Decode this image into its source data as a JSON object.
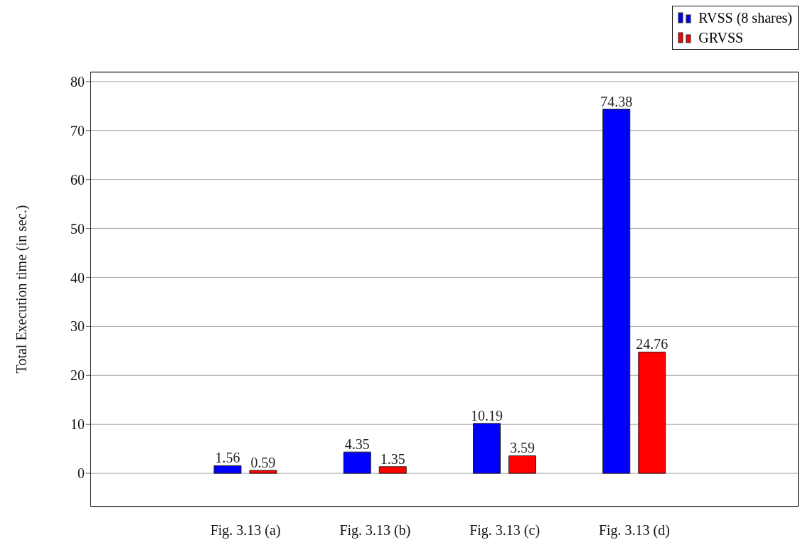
{
  "chart_data": {
    "type": "bar",
    "ylabel": "Total Execution time (in sec.)",
    "categories": [
      "Fig. 3.13 (a)",
      "Fig. 3.13 (b)",
      "Fig. 3.13 (c)",
      "Fig. 3.13 (d)"
    ],
    "series": [
      {
        "name": "RVSS (8 shares)",
        "color": "#0000ff",
        "values": [
          1.56,
          4.35,
          10.19,
          74.38
        ]
      },
      {
        "name": "GRVSS",
        "color": "#ff0000",
        "values": [
          0.59,
          1.35,
          3.59,
          24.76
        ]
      }
    ],
    "ylim": [
      -6.8,
      82
    ],
    "yticks": [
      0,
      10,
      20,
      30,
      40,
      50,
      60,
      70,
      80
    ],
    "grid": "y",
    "legend": "top right",
    "data_labels": true
  }
}
